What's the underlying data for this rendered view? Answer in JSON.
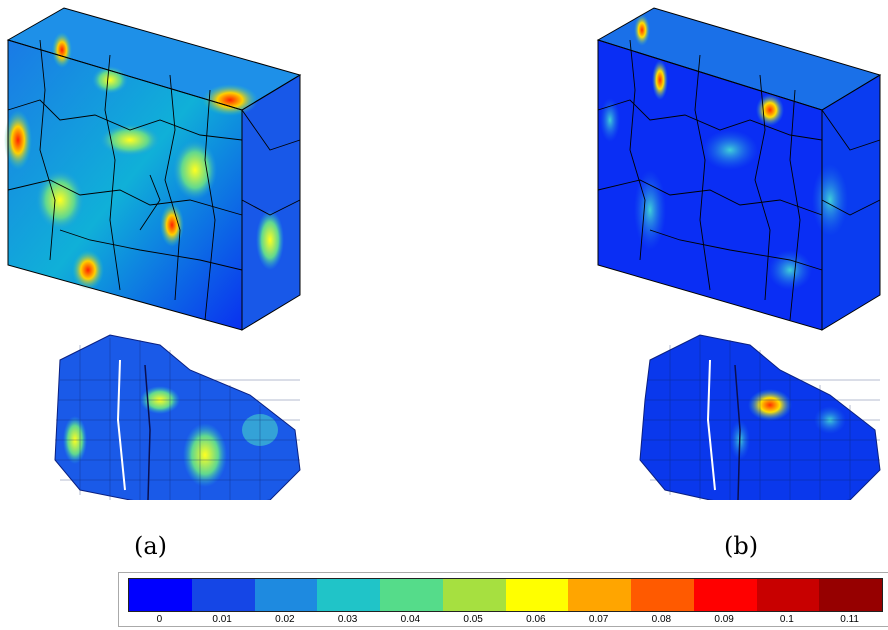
{
  "panels": [
    {
      "label": "(a)"
    },
    {
      "label": "(b)"
    }
  ],
  "colorbar": {
    "ticks": [
      "0",
      "0.01",
      "0.02",
      "0.03",
      "0.04",
      "0.05",
      "0.06",
      "0.07",
      "0.08",
      "0.09",
      "0.1",
      "0.11"
    ],
    "colors": [
      "#0000ff",
      "#1546e6",
      "#1e8ae0",
      "#20c4c8",
      "#55dc8a",
      "#a6e040",
      "#ffff00",
      "#ffa500",
      "#ff5a00",
      "#ff0000",
      "#c80000",
      "#960000"
    ]
  }
}
